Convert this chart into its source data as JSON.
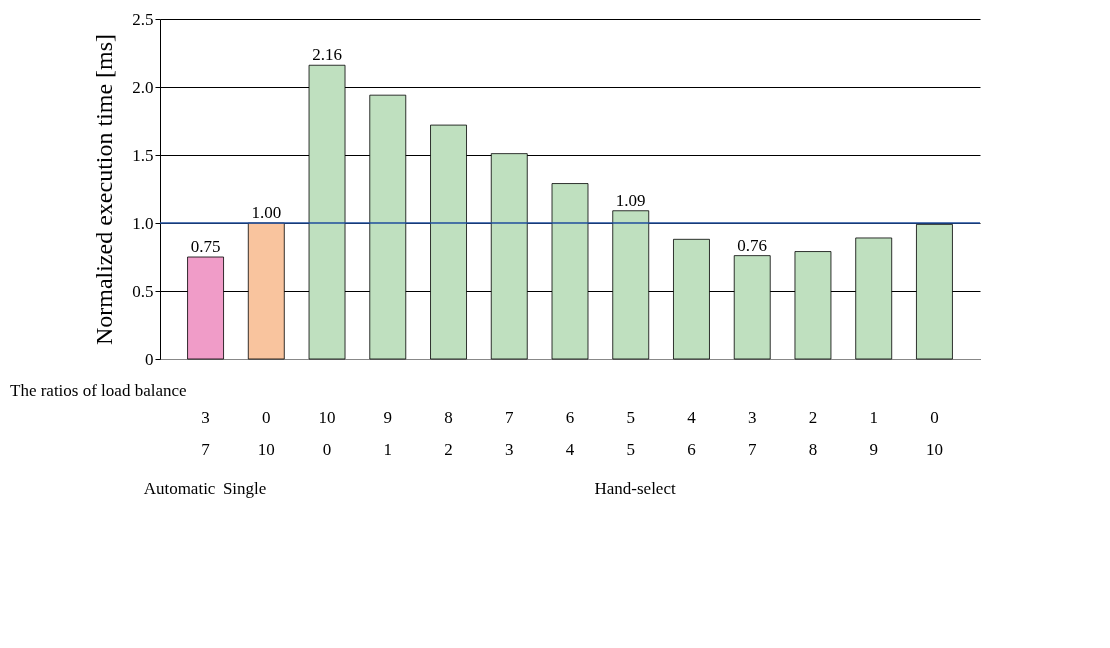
{
  "chart_data": {
    "type": "bar",
    "ylabel": "Normalized execution time [ms]",
    "categories": [
      "3\n7",
      "0\n10",
      "10\n0",
      "9\n1",
      "8\n2",
      "7\n3",
      "6\n4",
      "5\n5",
      "4\n6",
      "3\n7",
      "2\n8",
      "1\n9",
      "0\n10"
    ],
    "values": [
      0.75,
      1.0,
      2.16,
      1.94,
      1.72,
      1.51,
      1.29,
      1.09,
      0.88,
      0.76,
      0.79,
      0.89,
      0.99
    ],
    "colors": [
      "#f09cc8",
      "#f9c49e",
      "#bfe0bf",
      "#bfe0bf",
      "#bfe0bf",
      "#bfe0bf",
      "#bfe0bf",
      "#bfe0bf",
      "#bfe0bf",
      "#bfe0bf",
      "#bfe0bf",
      "#bfe0bf",
      "#bfe0bf"
    ],
    "value_labels": [
      "0.75",
      "1.00",
      "2.16",
      null,
      null,
      null,
      null,
      "1.09",
      null,
      "0.76",
      null,
      null,
      null
    ],
    "ylim": [
      0,
      2.5
    ],
    "yticks": [
      0,
      0.5,
      {
        "value": 1,
        "label": "1.0"
      },
      1.5,
      {
        "value": 2,
        "label": "2.0"
      },
      2.5
    ],
    "grid": "y",
    "ref_lines": [
      {
        "axis": "y",
        "value": 1.0,
        "color": "#1f4e9c"
      }
    ],
    "annotations": [
      "The ratios of load balance",
      "Automatic",
      "Single",
      "Hand-select"
    ]
  }
}
